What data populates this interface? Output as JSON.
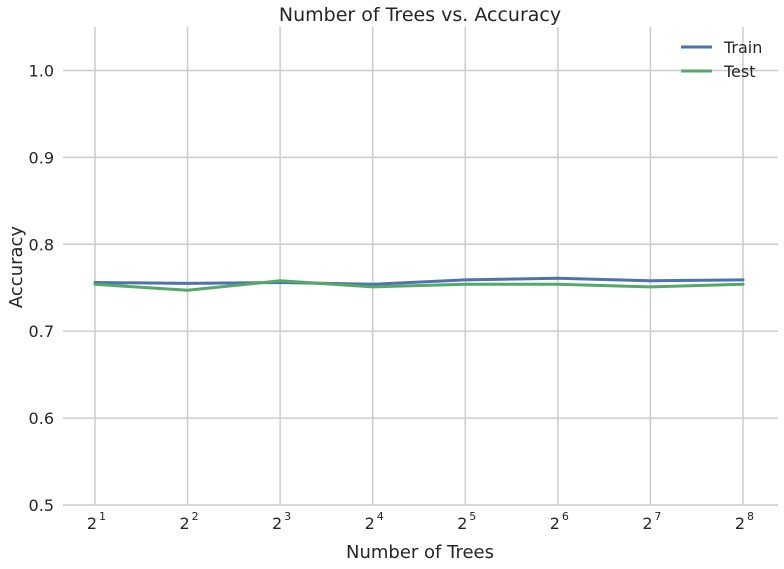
{
  "chart_data": {
    "type": "line",
    "title": "Number of Trees vs. Accuracy",
    "xlabel": "Number of Trees",
    "ylabel": "Accuracy",
    "x": [
      2,
      4,
      8,
      16,
      32,
      64,
      128,
      256
    ],
    "x_tick_labels": [
      {
        "base": "2",
        "exp": "1"
      },
      {
        "base": "2",
        "exp": "2"
      },
      {
        "base": "2",
        "exp": "3"
      },
      {
        "base": "2",
        "exp": "4"
      },
      {
        "base": "2",
        "exp": "5"
      },
      {
        "base": "2",
        "exp": "6"
      },
      {
        "base": "2",
        "exp": "7"
      },
      {
        "base": "2",
        "exp": "8"
      }
    ],
    "x_scale": "log2",
    "yticks": [
      "0.5",
      "0.6",
      "0.7",
      "0.8",
      "0.9",
      "1.0"
    ],
    "ylim": [
      0.5,
      1.05
    ],
    "grid": true,
    "legend_position": "top-right",
    "series": [
      {
        "name": "Train",
        "color": "#4c72b0",
        "values": [
          0.756,
          0.755,
          0.756,
          0.754,
          0.759,
          0.761,
          0.758,
          0.759
        ]
      },
      {
        "name": "Test",
        "color": "#55a868",
        "values": [
          0.754,
          0.747,
          0.758,
          0.751,
          0.754,
          0.754,
          0.751,
          0.754
        ]
      }
    ]
  }
}
